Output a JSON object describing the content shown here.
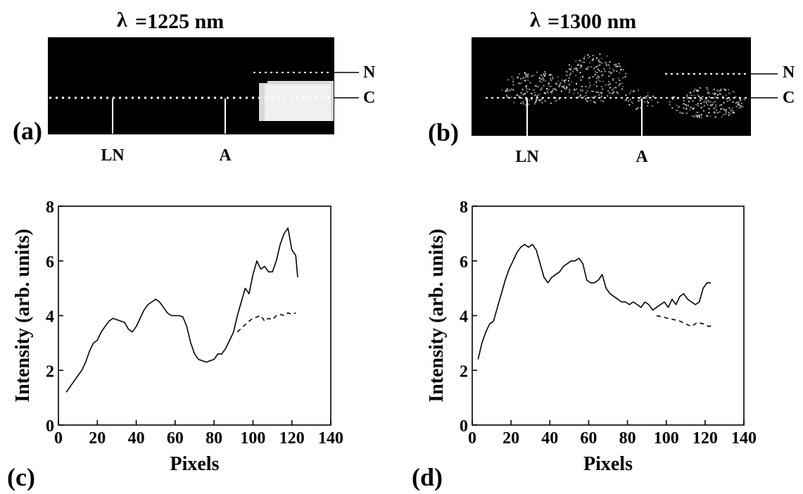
{
  "images": [
    {
      "title_symbol": "λ",
      "title_value": "=1225 nm",
      "panel_label": "(a)",
      "row_labels": [
        "N",
        "C"
      ],
      "marker_labels": [
        "LN",
        "A"
      ]
    },
    {
      "title_symbol": "λ",
      "title_value": "=1300 nm",
      "panel_label": "(b)",
      "row_labels": [
        "N",
        "C"
      ],
      "marker_labels": [
        "LN",
        "A"
      ]
    }
  ],
  "chart_data": [
    {
      "type": "line",
      "panel_label": "(c)",
      "xlabel": "Pixels",
      "ylabel": "Intensity (arb. units)",
      "xlim": [
        0,
        140
      ],
      "ylim": [
        0,
        8
      ],
      "xticks": [
        "0",
        "20",
        "40",
        "60",
        "80",
        "100",
        "120",
        "140"
      ],
      "yticks": [
        "0",
        "2",
        "4",
        "6",
        "8"
      ],
      "grid": false,
      "series": [
        {
          "style": "solid",
          "x": [
            4,
            6,
            8,
            10,
            12,
            14,
            16,
            18,
            20,
            22,
            24,
            26,
            28,
            30,
            32,
            34,
            36,
            38,
            40,
            42,
            44,
            46,
            48,
            50,
            52,
            54,
            56,
            58,
            60,
            62,
            64,
            66,
            68,
            70,
            72,
            74,
            76,
            78,
            80,
            82,
            84,
            86,
            88,
            90,
            92,
            94,
            96,
            98,
            100,
            102,
            104,
            106,
            108,
            110,
            112,
            114,
            116,
            118,
            120,
            122,
            123
          ],
          "y": [
            1.2,
            1.4,
            1.6,
            1.8,
            2.0,
            2.3,
            2.7,
            3.0,
            3.1,
            3.4,
            3.6,
            3.8,
            3.9,
            3.85,
            3.8,
            3.75,
            3.5,
            3.4,
            3.6,
            3.9,
            4.2,
            4.4,
            4.5,
            4.6,
            4.5,
            4.3,
            4.1,
            4.0,
            4.0,
            4.0,
            3.95,
            3.6,
            3.0,
            2.6,
            2.4,
            2.35,
            2.3,
            2.35,
            2.4,
            2.6,
            2.6,
            2.8,
            3.1,
            3.4,
            4.0,
            4.5,
            5.0,
            4.8,
            5.5,
            6.0,
            5.7,
            5.8,
            5.6,
            5.6,
            6.0,
            6.6,
            7.0,
            7.2,
            6.4,
            6.2,
            5.4
          ]
        },
        {
          "style": "dashed",
          "x": [
            92,
            95,
            98,
            100,
            102,
            104,
            106,
            108,
            110,
            112,
            114,
            116,
            118,
            120,
            122
          ],
          "y": [
            3.4,
            3.6,
            3.8,
            3.9,
            3.95,
            4.0,
            3.8,
            3.9,
            3.85,
            4.0,
            4.05,
            4.0,
            4.1,
            4.05,
            4.1
          ]
        }
      ]
    },
    {
      "type": "line",
      "panel_label": "(d)",
      "xlabel": "Pixels",
      "ylabel": "Intensity (arb. units)",
      "xlim": [
        0,
        140
      ],
      "ylim": [
        0,
        8
      ],
      "xticks": [
        "0",
        "20",
        "40",
        "60",
        "80",
        "100",
        "120",
        "140"
      ],
      "yticks": [
        "0",
        "2",
        "4",
        "6",
        "8"
      ],
      "grid": false,
      "series": [
        {
          "style": "solid",
          "x": [
            3,
            5,
            7,
            9,
            11,
            13,
            15,
            17,
            19,
            21,
            23,
            25,
            27,
            29,
            31,
            33,
            35,
            37,
            39,
            41,
            43,
            45,
            47,
            49,
            51,
            53,
            55,
            57,
            59,
            61,
            63,
            65,
            67,
            69,
            71,
            73,
            75,
            77,
            79,
            81,
            83,
            85,
            87,
            89,
            91,
            93,
            95,
            97,
            99,
            101,
            103,
            105,
            107,
            109,
            111,
            113,
            115,
            117,
            119,
            121,
            123
          ],
          "y": [
            2.4,
            3.0,
            3.4,
            3.7,
            3.8,
            4.3,
            4.8,
            5.3,
            5.7,
            6.0,
            6.3,
            6.5,
            6.6,
            6.5,
            6.6,
            6.4,
            5.9,
            5.4,
            5.2,
            5.4,
            5.5,
            5.6,
            5.8,
            5.9,
            6.0,
            6.0,
            6.1,
            5.9,
            5.3,
            5.2,
            5.2,
            5.3,
            5.5,
            5.0,
            4.8,
            4.7,
            4.6,
            4.5,
            4.5,
            4.4,
            4.5,
            4.4,
            4.3,
            4.5,
            4.4,
            4.2,
            4.3,
            4.4,
            4.5,
            4.3,
            4.6,
            4.4,
            4.7,
            4.8,
            4.6,
            4.5,
            4.4,
            4.5,
            5.0,
            5.2,
            5.2
          ]
        },
        {
          "style": "dashed",
          "x": [
            95,
            98,
            101,
            104,
            107,
            110,
            113,
            116,
            119,
            122,
            124
          ],
          "y": [
            4.0,
            3.95,
            3.9,
            3.85,
            3.8,
            3.7,
            3.6,
            3.75,
            3.7,
            3.6,
            3.65
          ]
        }
      ]
    }
  ]
}
